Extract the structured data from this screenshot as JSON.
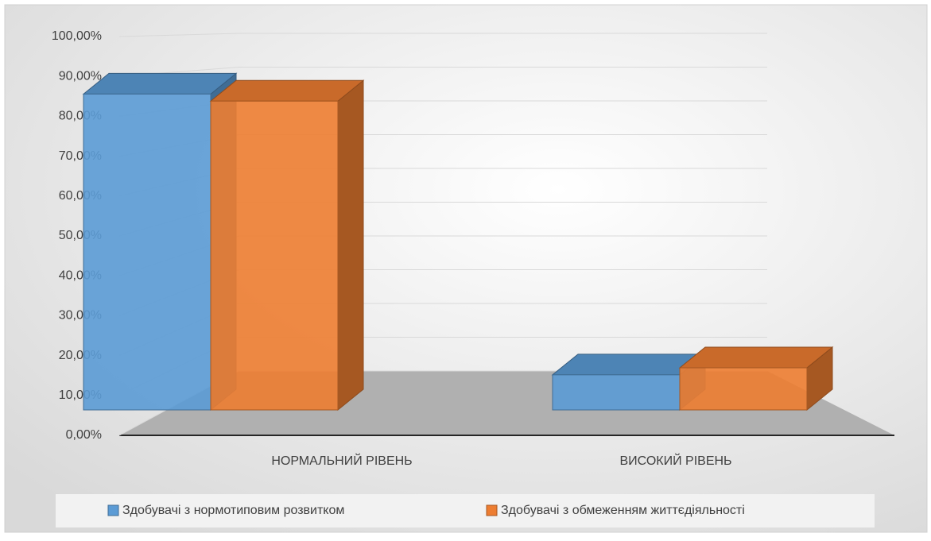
{
  "chart_data": {
    "type": "bar3d",
    "categories": [
      "НОРМАЛЬНИЙ РІВЕНЬ",
      "ВИСОКИЙ РІВЕНЬ"
    ],
    "series": [
      {
        "name": "Здобувачі з нормотиповим розвитком",
        "color": "#5b9bd5",
        "values": [
          90,
          10
        ]
      },
      {
        "name": "Здобувачі з обмеженням життєдіяльності",
        "color": "#ed7d31",
        "values": [
          88,
          12
        ]
      }
    ],
    "ylim": [
      0,
      100
    ],
    "yticks": [
      {
        "value": 0,
        "label": "0,00%"
      },
      {
        "value": 10,
        "label": "10,00%"
      },
      {
        "value": 20,
        "label": "20,00%"
      },
      {
        "value": 30,
        "label": "30,00%"
      },
      {
        "value": 40,
        "label": "40,00%"
      },
      {
        "value": 50,
        "label": "50,00%"
      },
      {
        "value": 60,
        "label": "60,00%"
      },
      {
        "value": 70,
        "label": "70,00%"
      },
      {
        "value": 80,
        "label": "80,00%"
      },
      {
        "value": 90,
        "label": "90,00%"
      },
      {
        "value": 100,
        "label": "100,00%"
      }
    ],
    "grid": true,
    "legend": "bottom"
  }
}
